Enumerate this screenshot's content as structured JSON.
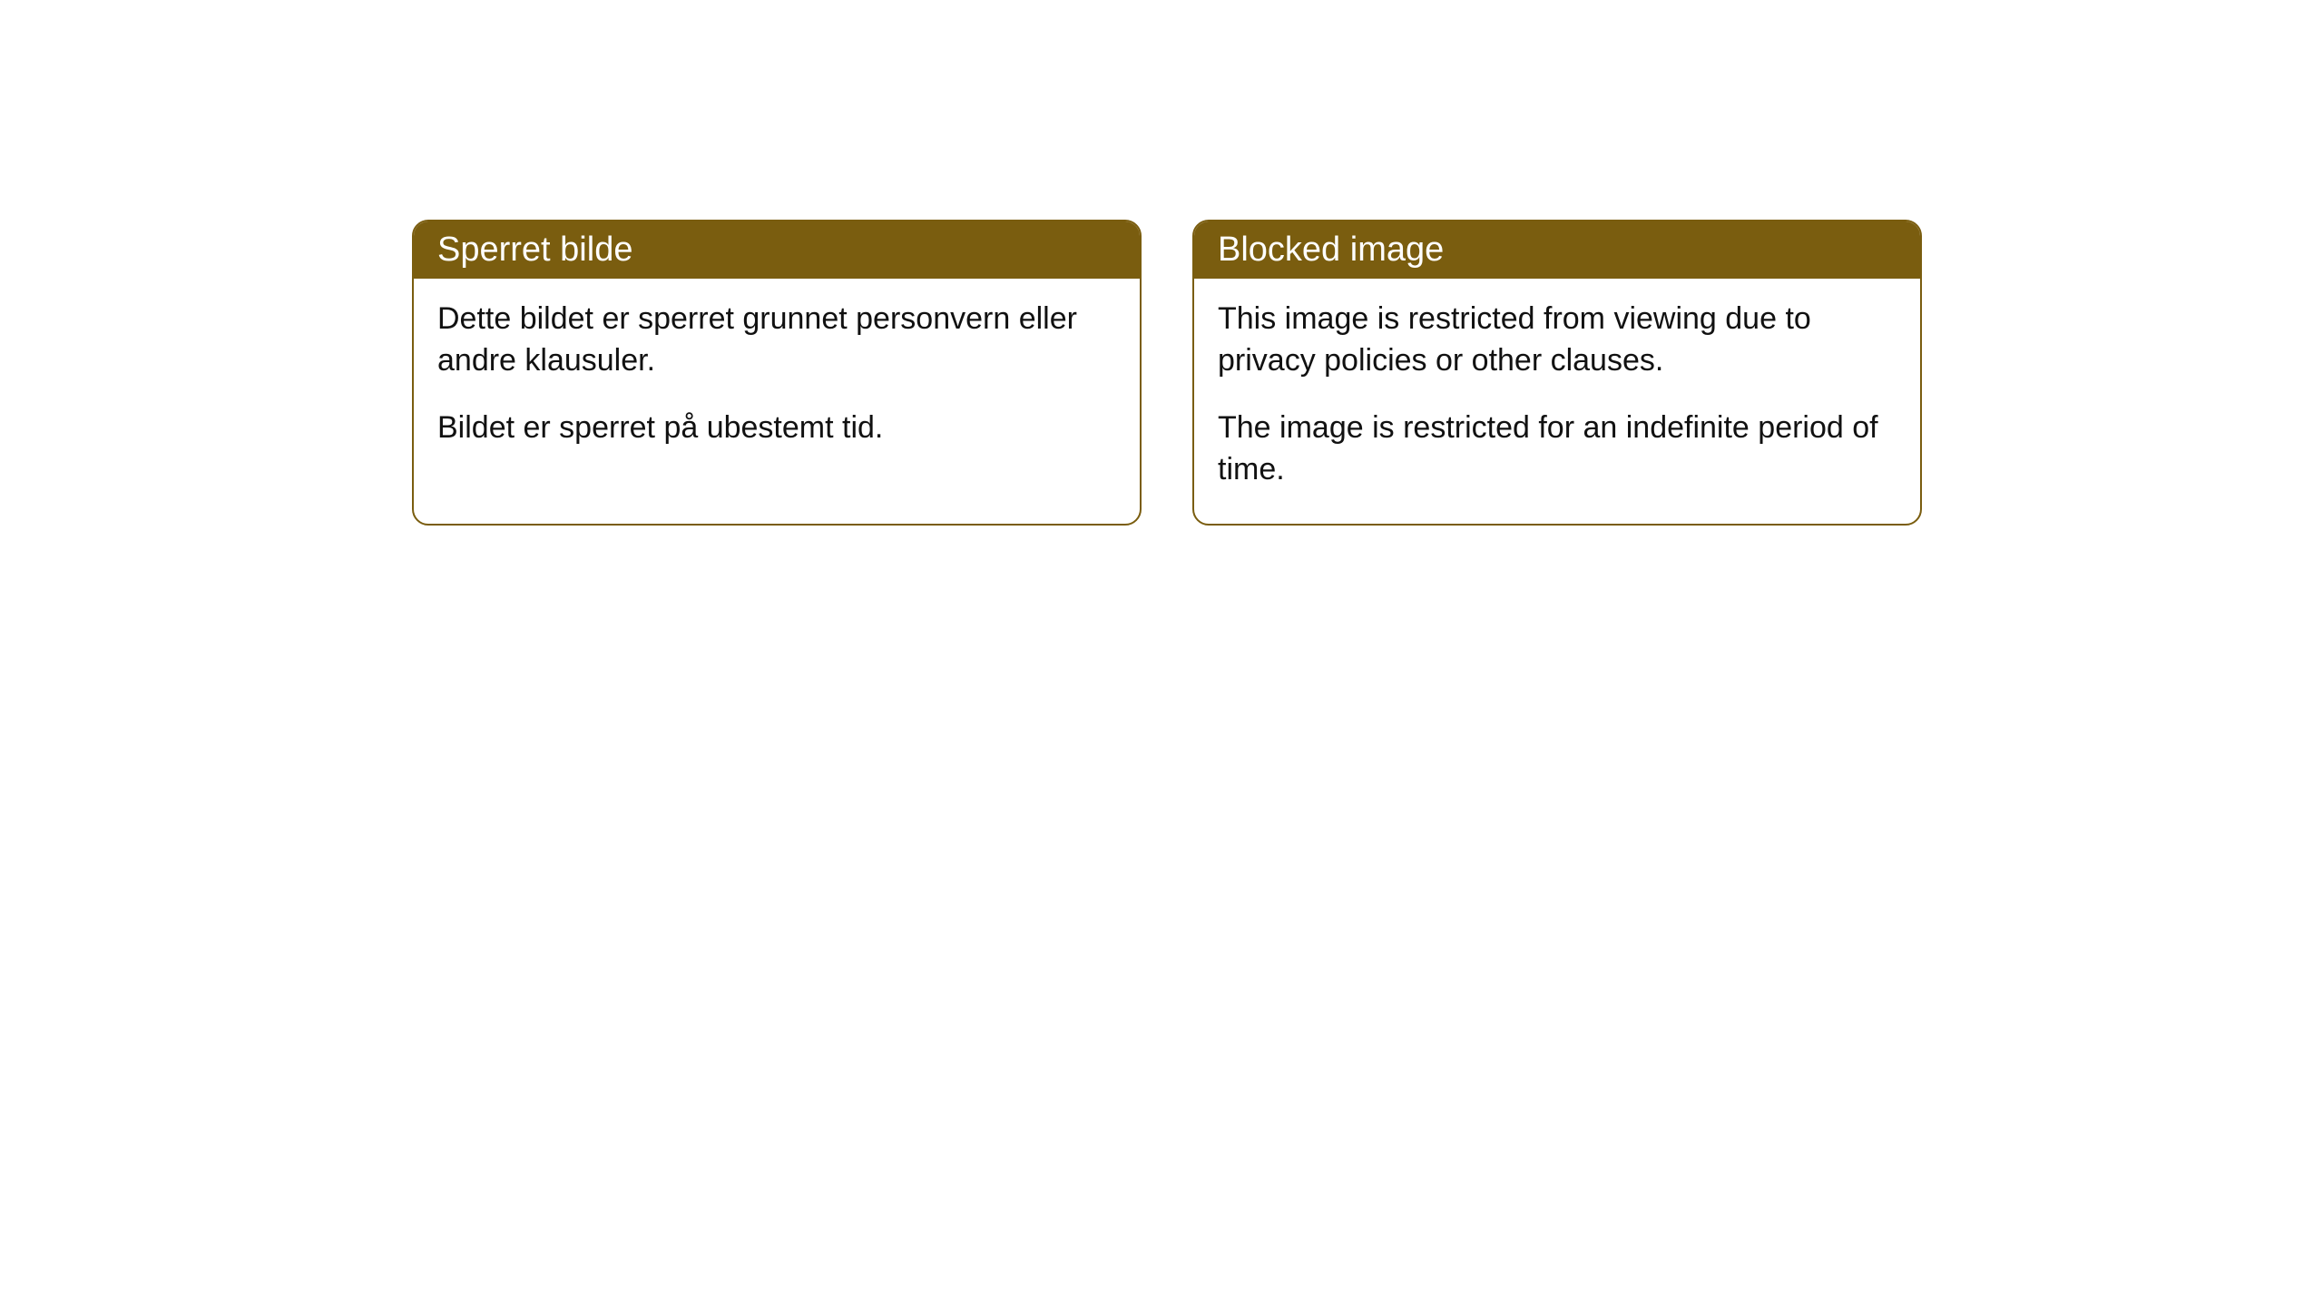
{
  "cards": [
    {
      "title": "Sperret bilde",
      "paragraph1": "Dette bildet er sperret grunnet personvern eller andre klausuler.",
      "paragraph2": "Bildet er sperret på ubestemt tid."
    },
    {
      "title": "Blocked image",
      "paragraph1": "This image is restricted from viewing due to privacy policies or other clauses.",
      "paragraph2": "The image is restricted for an indefinite period of time."
    }
  ],
  "style": {
    "header_background": "#7a5d0f",
    "header_text_color": "#ffffff",
    "border_color": "#7a5d0f",
    "card_background": "#ffffff",
    "body_text_color": "#111111",
    "border_radius": 18,
    "header_fontsize": 38,
    "body_fontsize": 34
  }
}
